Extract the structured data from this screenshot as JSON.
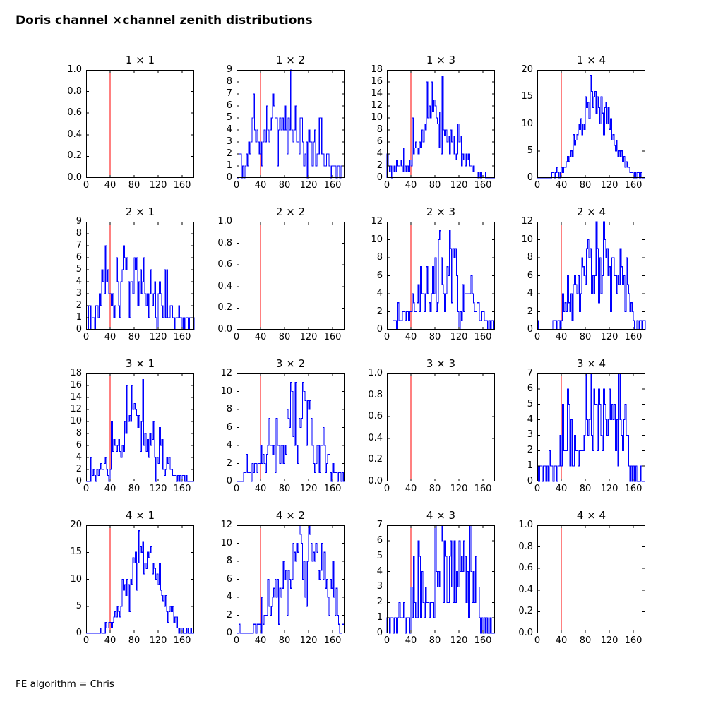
{
  "page": {
    "title": "Doris channel ×channel zenith distributions",
    "footer": "FE algorithm = Chris"
  },
  "chart_data": {
    "type": "histogram-grid",
    "title": "Doris channel ×channel zenith distributions",
    "footer": "FE algorithm = Chris",
    "x_range": [
      0,
      180
    ],
    "bin_width": 2,
    "xticks": [
      0,
      40,
      80,
      120,
      160
    ],
    "red_line_x": 40,
    "colors": {
      "hist": "#0000ff",
      "marker": "#ff0000",
      "axis": "#000000",
      "background": "#ffffff"
    },
    "subplots": [
      {
        "title": "1 × 1",
        "row": 0,
        "col": 0,
        "empty": true,
        "ylim": [
          0,
          1
        ],
        "yticks": [
          0,
          0.2,
          0.4,
          0.6,
          0.8,
          1
        ],
        "ydec": 1
      },
      {
        "title": "1 × 2",
        "row": 0,
        "col": 1,
        "ylim": [
          0,
          9
        ],
        "yticks": [
          0,
          1,
          2,
          3,
          4,
          5,
          6,
          7,
          8,
          9
        ],
        "ydec": 0,
        "bins": [
          0,
          0,
          2,
          2,
          0,
          1,
          0,
          1,
          2,
          1,
          3,
          2,
          3,
          5,
          7,
          4,
          3,
          4,
          3,
          2,
          3,
          1,
          3,
          4,
          3,
          6,
          4,
          3,
          4,
          5,
          7,
          6,
          5,
          5,
          1,
          4,
          5,
          4,
          5,
          4,
          6,
          4,
          2,
          5,
          4,
          9,
          4,
          3,
          4,
          6,
          3,
          3,
          2,
          5,
          5,
          3,
          1,
          2,
          3,
          0,
          4,
          3,
          3,
          1,
          3,
          4,
          1,
          2,
          2,
          5,
          5,
          2,
          2,
          1,
          1,
          2,
          2,
          1,
          0,
          1,
          1,
          1,
          1,
          0,
          1,
          1,
          0,
          1,
          1,
          1
        ]
      },
      {
        "title": "1 × 3",
        "row": 0,
        "col": 2,
        "ylim": [
          0,
          18
        ],
        "yticks": [
          0,
          2,
          4,
          6,
          8,
          10,
          12,
          14,
          16,
          18
        ],
        "ydec": 0,
        "bins": [
          4,
          2,
          1,
          2,
          0,
          1,
          2,
          1,
          3,
          2,
          2,
          3,
          2,
          1,
          5,
          2,
          1,
          2,
          1,
          3,
          2,
          10,
          4,
          5,
          6,
          5,
          4,
          6,
          5,
          8,
          6,
          9,
          8,
          16,
          10,
          12,
          10,
          16,
          11,
          13,
          12,
          10,
          9,
          5,
          11,
          4,
          17,
          8,
          7,
          8,
          6,
          7,
          4,
          8,
          6,
          7,
          4,
          3,
          4,
          9,
          6,
          7,
          2,
          4,
          3,
          2,
          4,
          3,
          4,
          2,
          2,
          1,
          2,
          1,
          1,
          1,
          0,
          1,
          0,
          1,
          1,
          1,
          0,
          0,
          0,
          0,
          0,
          0,
          0,
          0
        ]
      },
      {
        "title": "1 × 4",
        "row": 0,
        "col": 3,
        "ylim": [
          0,
          20
        ],
        "yticks": [
          0,
          5,
          10,
          15,
          20
        ],
        "ydec": 0,
        "bins": [
          0,
          0,
          0,
          0,
          0,
          0,
          0,
          0,
          0,
          0,
          0,
          0,
          1,
          1,
          0,
          1,
          2,
          1,
          0,
          1,
          2,
          1,
          2,
          2,
          3,
          4,
          3,
          4,
          5,
          4,
          8,
          6,
          7,
          8,
          10,
          9,
          11,
          8,
          10,
          9,
          15,
          13,
          14,
          11,
          19,
          16,
          13,
          15,
          16,
          12,
          15,
          13,
          10,
          15,
          12,
          8,
          13,
          14,
          10,
          13,
          9,
          11,
          7,
          8,
          6,
          5,
          7,
          4,
          5,
          4,
          5,
          3,
          4,
          2,
          3,
          2,
          2,
          1,
          1,
          1,
          0,
          1,
          0,
          1,
          1,
          0,
          1,
          0,
          0,
          0
        ]
      },
      {
        "title": "2 × 1",
        "row": 1,
        "col": 0,
        "ylim": [
          0,
          9
        ],
        "yticks": [
          0,
          1,
          2,
          3,
          4,
          5,
          6,
          7,
          8,
          9
        ],
        "ydec": 0,
        "bins": [
          0,
          0,
          2,
          2,
          0,
          1,
          1,
          0,
          2,
          2,
          1,
          3,
          2,
          5,
          4,
          3,
          7,
          4,
          5,
          3,
          3,
          2,
          3,
          1,
          2,
          6,
          4,
          2,
          1,
          4,
          5,
          7,
          6,
          5,
          6,
          4,
          1,
          4,
          4,
          3,
          6,
          5,
          6,
          2,
          4,
          5,
          3,
          4,
          6,
          3,
          2,
          3,
          1,
          3,
          5,
          2,
          3,
          4,
          1,
          0,
          3,
          4,
          3,
          2,
          1,
          5,
          1,
          5,
          1,
          1,
          2,
          2,
          1,
          1,
          0,
          1,
          1,
          2,
          1,
          1,
          0,
          1,
          0,
          1,
          1,
          0,
          1,
          1,
          1,
          1
        ]
      },
      {
        "title": "2 × 2",
        "row": 1,
        "col": 1,
        "empty": true,
        "ylim": [
          0,
          1
        ],
        "yticks": [
          0,
          0.2,
          0.4,
          0.6,
          0.8,
          1
        ],
        "ydec": 1
      },
      {
        "title": "2 × 3",
        "row": 1,
        "col": 2,
        "ylim": [
          0,
          12
        ],
        "yticks": [
          0,
          2,
          4,
          6,
          8,
          10,
          12
        ],
        "ydec": 0,
        "bins": [
          0,
          0,
          0,
          0,
          0,
          1,
          1,
          1,
          0,
          3,
          1,
          1,
          1,
          2,
          2,
          1,
          2,
          2,
          1,
          2,
          2,
          4,
          3,
          2,
          2,
          3,
          5,
          2,
          7,
          4,
          4,
          2,
          4,
          7,
          4,
          3,
          2,
          4,
          7,
          4,
          8,
          2,
          3,
          10,
          11,
          8,
          5,
          4,
          2,
          4,
          7,
          6,
          11,
          9,
          3,
          9,
          8,
          9,
          6,
          2,
          0,
          2,
          1,
          5,
          2,
          4,
          4,
          4,
          4,
          4,
          6,
          4,
          3,
          2,
          2,
          3,
          3,
          1,
          1,
          2,
          2,
          1,
          1,
          1,
          0,
          1,
          0,
          1,
          1,
          0
        ]
      },
      {
        "title": "2 × 4",
        "row": 1,
        "col": 3,
        "ylim": [
          0,
          12
        ],
        "yticks": [
          0,
          2,
          4,
          6,
          8,
          10,
          12
        ],
        "ydec": 0,
        "bins": [
          1,
          0,
          0,
          0,
          0,
          0,
          0,
          0,
          0,
          0,
          0,
          0,
          0,
          1,
          1,
          1,
          0,
          1,
          1,
          0,
          1,
          4,
          2,
          3,
          2,
          6,
          3,
          2,
          4,
          1,
          5,
          6,
          5,
          4,
          6,
          2,
          4,
          8,
          7,
          6,
          5,
          9,
          10,
          8,
          9,
          4,
          6,
          4,
          6,
          12,
          9,
          3,
          8,
          4,
          6,
          12,
          10,
          8,
          9,
          6,
          7,
          2,
          8,
          8,
          6,
          6,
          4,
          6,
          5,
          9,
          7,
          5,
          6,
          2,
          8,
          5,
          4,
          2,
          3,
          2,
          1,
          0,
          0,
          1,
          0,
          1,
          1,
          0,
          1,
          1
        ]
      },
      {
        "title": "3 × 1",
        "row": 2,
        "col": 0,
        "ylim": [
          0,
          18
        ],
        "yticks": [
          0,
          2,
          4,
          6,
          8,
          10,
          12,
          14,
          16,
          18
        ],
        "ydec": 0,
        "bins": [
          0,
          0,
          0,
          0,
          4,
          1,
          2,
          1,
          0,
          2,
          1,
          2,
          3,
          2,
          2,
          3,
          4,
          2,
          1,
          0,
          2,
          10,
          5,
          7,
          6,
          5,
          6,
          7,
          5,
          4,
          6,
          5,
          10,
          8,
          16,
          10,
          11,
          10,
          16,
          12,
          13,
          12,
          11,
          9,
          11,
          5,
          10,
          17,
          6,
          8,
          5,
          7,
          4,
          8,
          6,
          7,
          10,
          4,
          0,
          4,
          3,
          9,
          6,
          7,
          2,
          1,
          2,
          4,
          3,
          4,
          2,
          2,
          1,
          1,
          1,
          0,
          1,
          0,
          1,
          0,
          1,
          1,
          0,
          1,
          0,
          0,
          0,
          0,
          0,
          0
        ]
      },
      {
        "title": "3 × 2",
        "row": 2,
        "col": 1,
        "ylim": [
          0,
          12
        ],
        "yticks": [
          0,
          2,
          4,
          6,
          8,
          10,
          12
        ],
        "ydec": 0,
        "bins": [
          0,
          0,
          0,
          0,
          0,
          0,
          1,
          1,
          3,
          1,
          1,
          1,
          0,
          2,
          1,
          2,
          2,
          1,
          2,
          2,
          4,
          2,
          3,
          2,
          1,
          3,
          4,
          7,
          4,
          4,
          3,
          4,
          1,
          7,
          4,
          4,
          2,
          4,
          4,
          2,
          4,
          3,
          8,
          7,
          6,
          11,
          10,
          5,
          4,
          11,
          4,
          2,
          7,
          6,
          7,
          11,
          10,
          9,
          4,
          9,
          8,
          9,
          7,
          4,
          2,
          1,
          2,
          4,
          4,
          1,
          4,
          4,
          6,
          4,
          1,
          2,
          3,
          3,
          1,
          0,
          2,
          1,
          1,
          1,
          0,
          1,
          1,
          0,
          1,
          0
        ]
      },
      {
        "title": "3 × 3",
        "row": 2,
        "col": 2,
        "empty": true,
        "ylim": [
          0,
          1
        ],
        "yticks": [
          0,
          0.2,
          0.4,
          0.6,
          0.8,
          1
        ],
        "ydec": 1
      },
      {
        "title": "3 × 4",
        "row": 2,
        "col": 3,
        "ylim": [
          0,
          7
        ],
        "yticks": [
          0,
          1,
          2,
          3,
          4,
          5,
          6,
          7
        ],
        "ydec": 0,
        "bins": [
          1,
          0,
          1,
          1,
          0,
          1,
          1,
          0,
          1,
          0,
          2,
          1,
          1,
          0,
          1,
          1,
          0,
          1,
          1,
          3,
          1,
          5,
          2,
          2,
          2,
          6,
          5,
          1,
          4,
          1,
          1,
          3,
          2,
          2,
          1,
          2,
          2,
          2,
          2,
          3,
          7,
          4,
          3,
          4,
          7,
          3,
          2,
          6,
          5,
          5,
          2,
          6,
          5,
          3,
          2,
          6,
          5,
          4,
          3,
          4,
          6,
          4,
          5,
          4,
          5,
          2,
          4,
          1,
          7,
          4,
          3,
          2,
          4,
          5,
          3,
          3,
          1,
          0,
          1,
          0,
          1,
          0,
          1,
          0,
          0,
          0,
          1,
          0,
          0,
          0
        ]
      },
      {
        "title": "4 × 1",
        "row": 3,
        "col": 0,
        "ylim": [
          0,
          20
        ],
        "yticks": [
          0,
          5,
          10,
          15,
          20
        ],
        "ydec": 0,
        "bins": [
          0,
          0,
          0,
          0,
          0,
          0,
          0,
          0,
          0,
          0,
          0,
          0,
          1,
          0,
          0,
          0,
          2,
          1,
          1,
          2,
          2,
          1,
          2,
          3,
          4,
          3,
          5,
          4,
          3,
          5,
          10,
          8,
          9,
          7,
          10,
          9,
          4,
          10,
          9,
          14,
          13,
          15,
          8,
          13,
          19,
          16,
          15,
          17,
          11,
          13,
          12,
          15,
          14,
          15,
          16,
          11,
          13,
          12,
          10,
          11,
          9,
          13,
          8,
          7,
          6,
          5,
          7,
          4,
          2,
          4,
          5,
          4,
          5,
          2,
          3,
          3,
          1,
          0,
          1,
          0,
          1,
          0,
          0,
          0,
          1,
          0,
          0,
          1,
          0,
          0
        ]
      },
      {
        "title": "4 × 2",
        "row": 3,
        "col": 1,
        "ylim": [
          0,
          12
        ],
        "yticks": [
          0,
          2,
          4,
          6,
          8,
          10,
          12
        ],
        "ydec": 0,
        "bins": [
          0,
          0,
          1,
          0,
          0,
          0,
          0,
          0,
          0,
          0,
          0,
          0,
          0,
          0,
          1,
          1,
          0,
          1,
          1,
          1,
          0,
          4,
          1,
          2,
          2,
          2,
          6,
          3,
          2,
          3,
          4,
          5,
          6,
          4,
          6,
          1,
          5,
          4,
          5,
          8,
          6,
          7,
          2,
          7,
          6,
          5,
          6,
          10,
          9,
          8,
          10,
          9,
          12,
          11,
          10,
          6,
          8,
          4,
          3,
          8,
          12,
          11,
          10,
          8,
          9,
          8,
          10,
          9,
          7,
          6,
          7,
          10,
          6,
          9,
          5,
          6,
          4,
          2,
          6,
          5,
          8,
          4,
          2,
          5,
          2,
          1,
          0,
          0,
          1,
          1
        ]
      },
      {
        "title": "4 × 3",
        "row": 3,
        "col": 2,
        "ylim": [
          0,
          7
        ],
        "yticks": [
          0,
          1,
          2,
          3,
          4,
          5,
          6,
          7
        ],
        "ydec": 0,
        "bins": [
          1,
          1,
          0,
          1,
          1,
          0,
          1,
          1,
          0,
          1,
          2,
          1,
          1,
          1,
          2,
          0,
          1,
          1,
          1,
          0,
          3,
          1,
          5,
          2,
          1,
          1,
          6,
          5,
          1,
          4,
          2,
          1,
          3,
          2,
          2,
          1,
          2,
          2,
          2,
          1,
          7,
          4,
          3,
          4,
          3,
          7,
          6,
          2,
          6,
          5,
          2,
          2,
          5,
          6,
          3,
          2,
          6,
          2,
          4,
          3,
          6,
          4,
          5,
          4,
          6,
          5,
          2,
          4,
          1,
          7,
          4,
          2,
          4,
          2,
          5,
          3,
          3,
          1,
          0,
          1,
          0,
          1,
          0,
          1,
          0,
          0,
          1,
          0,
          0,
          0
        ]
      },
      {
        "title": "4 × 4",
        "row": 3,
        "col": 3,
        "empty": true,
        "ylim": [
          0,
          1
        ],
        "yticks": [
          0,
          0.2,
          0.4,
          0.6,
          0.8,
          1
        ],
        "ydec": 1
      }
    ]
  }
}
